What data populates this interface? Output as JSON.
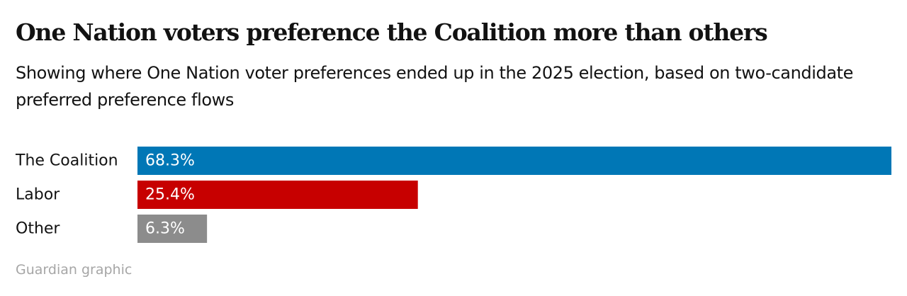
{
  "header": {
    "title": "One Nation voters preference the Coalition more than others",
    "subtitle": "Showing where One Nation voter preferences ended up in the 2025 election, based on two-candidate preferred preference flows"
  },
  "footer": {
    "source": "Guardian graphic"
  },
  "chart_data": {
    "type": "bar",
    "orientation": "horizontal",
    "categories": [
      "The Coalition",
      "Labor",
      "Other"
    ],
    "values": [
      68.3,
      25.4,
      6.3
    ],
    "value_labels": [
      "68.3%",
      "25.4%",
      "6.3%"
    ],
    "colors": [
      "#0077b6",
      "#c70000",
      "#8c8c8c"
    ],
    "xlim": [
      0,
      68.3
    ],
    "grid": false,
    "legend": "none"
  }
}
